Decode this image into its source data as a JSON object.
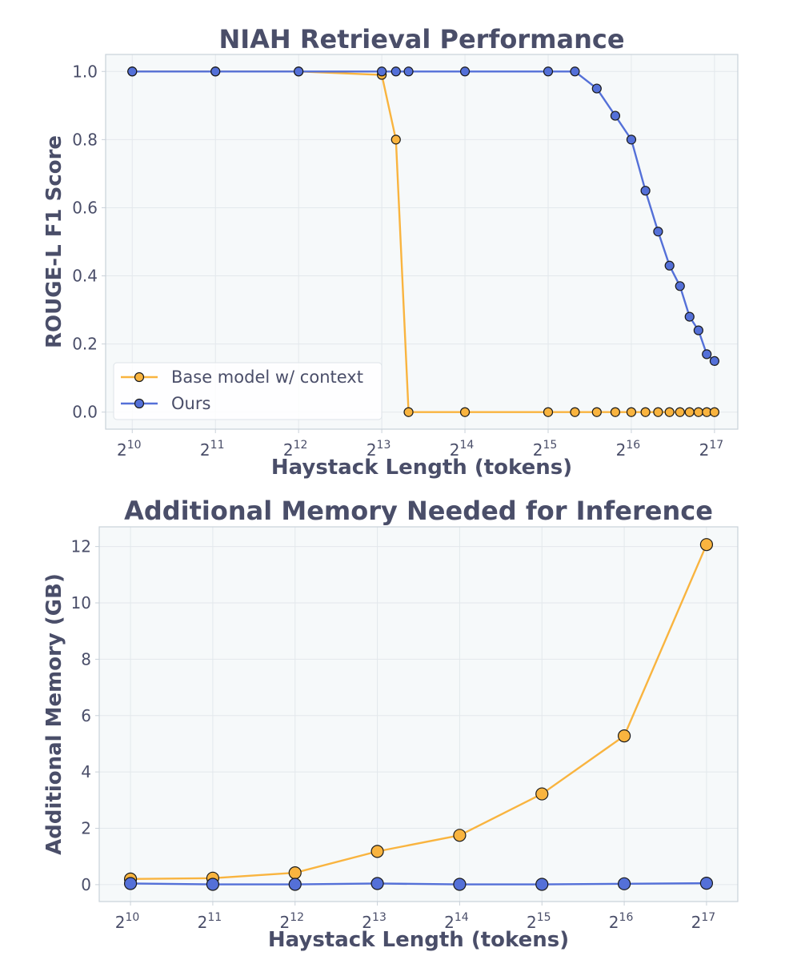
{
  "chart_data": [
    {
      "type": "line",
      "title": "NIAH Retrieval Performance",
      "xlabel": "Haystack Length (tokens)",
      "ylabel": "ROUGE-L F1 Score",
      "x_scale": "log2",
      "x_ticks": [
        {
          "base": "2",
          "exp": "10",
          "value": 1024
        },
        {
          "base": "2",
          "exp": "11",
          "value": 2048
        },
        {
          "base": "2",
          "exp": "12",
          "value": 4096
        },
        {
          "base": "2",
          "exp": "13",
          "value": 8192
        },
        {
          "base": "2",
          "exp": "14",
          "value": 16384
        },
        {
          "base": "2",
          "exp": "15",
          "value": 32768
        },
        {
          "base": "2",
          "exp": "16",
          "value": 65536
        },
        {
          "base": "2",
          "exp": "17",
          "value": 131072
        }
      ],
      "y_ticks": [
        "0.0",
        "0.2",
        "0.4",
        "0.6",
        "0.8",
        "1.0"
      ],
      "ylim": [
        -0.05,
        1.05
      ],
      "grid": true,
      "legend_position": "lower-left",
      "series": [
        {
          "name": "Base model w/ context",
          "color": "#f9b43f",
          "x": [
            1024,
            2048,
            4096,
            8192,
            9216,
            10240,
            16384,
            32768,
            40960,
            49152,
            57344,
            65536,
            73728,
            81920,
            90112,
            98304,
            106496,
            114688,
            122880,
            131072
          ],
          "y": [
            1.0,
            1.0,
            1.0,
            0.99,
            0.8,
            0.0,
            0.0,
            0.0,
            0.0,
            0.0,
            0.0,
            0.0,
            0.0,
            0.0,
            0.0,
            0.0,
            0.0,
            0.0,
            0.0,
            0.0
          ]
        },
        {
          "name": "Ours",
          "color": "#5470d8",
          "x": [
            1024,
            2048,
            4096,
            8192,
            9216,
            10240,
            16384,
            32768,
            40960,
            49152,
            57344,
            65536,
            73728,
            81920,
            90112,
            98304,
            106496,
            114688,
            122880,
            131072
          ],
          "y": [
            1.0,
            1.0,
            1.0,
            1.0,
            1.0,
            1.0,
            1.0,
            1.0,
            1.0,
            0.95,
            0.87,
            0.8,
            0.65,
            0.53,
            0.43,
            0.37,
            0.28,
            0.24,
            0.17,
            0.15
          ]
        }
      ]
    },
    {
      "type": "line",
      "title": "Additional Memory Needed for Inference",
      "xlabel": "Haystack Length (tokens)",
      "ylabel": "Additional Memory (GB)",
      "x_scale": "log2",
      "x_ticks": [
        {
          "base": "2",
          "exp": "10",
          "value": 1024
        },
        {
          "base": "2",
          "exp": "11",
          "value": 2048
        },
        {
          "base": "2",
          "exp": "12",
          "value": 4096
        },
        {
          "base": "2",
          "exp": "13",
          "value": 8192
        },
        {
          "base": "2",
          "exp": "14",
          "value": 16384
        },
        {
          "base": "2",
          "exp": "15",
          "value": 32768
        },
        {
          "base": "2",
          "exp": "16",
          "value": 65536
        },
        {
          "base": "2",
          "exp": "17",
          "value": 131072
        }
      ],
      "y_ticks": [
        "0",
        "2",
        "4",
        "6",
        "8",
        "10",
        "12"
      ],
      "ylim": [
        -0.6,
        12.7
      ],
      "grid": true,
      "series": [
        {
          "name": "Base model w/ context",
          "color": "#f9b43f",
          "x": [
            1024,
            2048,
            4096,
            8192,
            16384,
            32768,
            65536,
            131072
          ],
          "y": [
            0.2,
            0.23,
            0.42,
            1.18,
            1.75,
            3.22,
            5.28,
            12.07
          ]
        },
        {
          "name": "Ours",
          "color": "#5470d8",
          "x": [
            1024,
            2048,
            4096,
            8192,
            16384,
            32768,
            65536,
            131072
          ],
          "y": [
            0.04,
            0.01,
            0.01,
            0.04,
            0.01,
            0.01,
            0.03,
            0.05
          ]
        }
      ]
    }
  ]
}
